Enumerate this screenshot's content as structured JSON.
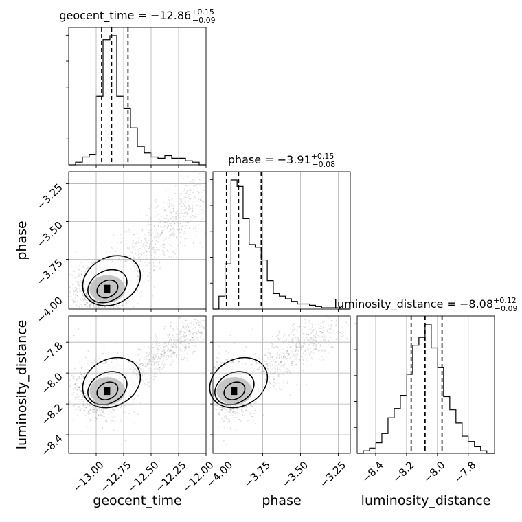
{
  "chart_data": {
    "type": "corner",
    "grid": true,
    "parameters": [
      "geocent_time",
      "phase",
      "luminosity_distance"
    ],
    "ranges": {
      "geocent_time": [
        -13.25,
        -12.0
      ],
      "phase": [
        -4.08,
        -3.17
      ],
      "luminosity_distance": [
        -8.52,
        -7.63
      ]
    },
    "ticks": {
      "geocent_time": {
        "values": [
          -13.0,
          -12.75,
          -12.5,
          -12.25,
          -12.0
        ],
        "labels": [
          "−13.00",
          "−12.75",
          "−12.50",
          "−12.25",
          "−12.00"
        ]
      },
      "phase": {
        "values": [
          -4.0,
          -3.75,
          -3.5,
          -3.25
        ],
        "labels": [
          "−4.00",
          "−3.75",
          "−3.50",
          "−3.25"
        ]
      },
      "luminosity_distance": {
        "values": [
          -8.4,
          -8.2,
          -8.0,
          -7.8
        ],
        "labels": [
          "−8.4",
          "−8.2",
          "−8.0",
          "−7.8"
        ]
      }
    },
    "axis_labels": {
      "geocent_time": "geocent_time",
      "phase": "phase",
      "luminosity_distance": "luminosity_distance"
    },
    "titles": [
      {
        "name": "geocent_time",
        "median": "−12.86",
        "plus": "+0.15",
        "minus": "−0.09"
      },
      {
        "name": "phase",
        "median": "−3.91",
        "plus": "+0.15",
        "minus": "−0.08"
      },
      {
        "name": "luminosity_distance",
        "median": "−8.08",
        "plus": "+0.12",
        "minus": "−0.09"
      }
    ],
    "quantile_lines": {
      "geocent_time": [
        -12.95,
        -12.86,
        -12.71
      ],
      "phase": [
        -3.99,
        -3.91,
        -3.76
      ],
      "luminosity_distance": [
        -8.17,
        -8.08,
        -7.97
      ]
    },
    "histograms": {
      "geocent_time": {
        "bin_edges": [
          -13.25,
          -13.1875,
          -13.125,
          -13.0625,
          -13.0,
          -12.9375,
          -12.875,
          -12.8125,
          -12.75,
          -12.6875,
          -12.625,
          -12.5625,
          -12.5,
          -12.4375,
          -12.375,
          -12.3125,
          -12.25,
          -12.1875,
          -12.125,
          -12.0625,
          -12.0
        ],
        "counts": [
          0,
          2,
          6,
          8,
          52,
          95,
          98,
          52,
          43,
          28,
          14,
          9,
          6,
          5,
          7,
          5,
          5,
          3,
          2,
          0
        ]
      },
      "phase": {
        "bin_edges": [
          -4.08,
          -4.04,
          -4.0,
          -3.96,
          -3.92,
          -3.88,
          -3.84,
          -3.8,
          -3.76,
          -3.72,
          -3.68,
          -3.64,
          -3.6,
          -3.56,
          -3.52,
          -3.48,
          -3.44,
          -3.4,
          -3.36,
          -3.32,
          -3.28,
          -3.24,
          -3.2,
          -3.17
        ],
        "counts": [
          0,
          10,
          35,
          100,
          95,
          70,
          50,
          48,
          38,
          22,
          12,
          10,
          8,
          6,
          4,
          4,
          3,
          2,
          1,
          1,
          1,
          0,
          0
        ]
      },
      "luminosity_distance": {
        "bin_edges": [
          -8.52,
          -8.48,
          -8.44,
          -8.4,
          -8.36,
          -8.32,
          -8.28,
          -8.24,
          -8.2,
          -8.16,
          -8.12,
          -8.08,
          -8.04,
          -8.0,
          -7.96,
          -7.92,
          -7.88,
          -7.84,
          -7.8,
          -7.76,
          -7.72,
          -7.68,
          -7.63
        ],
        "counts": [
          0,
          2,
          4,
          8,
          15,
          27,
          34,
          44,
          60,
          82,
          88,
          98,
          80,
          65,
          43,
          33,
          23,
          13,
          9,
          5,
          2,
          0
        ]
      }
    },
    "contour_pairs": [
      "phase vs geocent_time",
      "luminosity_distance vs geocent_time",
      "luminosity_distance vs phase"
    ]
  }
}
